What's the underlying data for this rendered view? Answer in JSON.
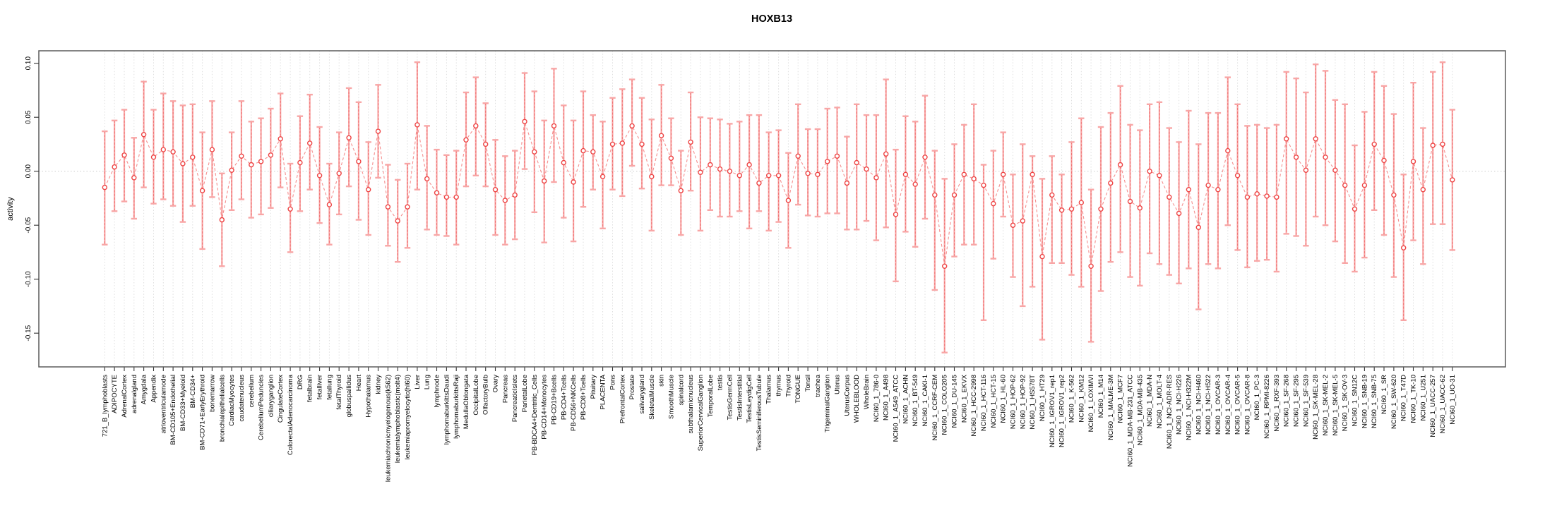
{
  "title": "HOXB13",
  "ylabel": "activity",
  "axis": {
    "ytick_labels": [
      "0.10",
      "0.05",
      "0.00",
      "-0.05",
      "-0.10",
      "-0.15"
    ],
    "yticks": [
      0.1,
      0.05,
      0.0,
      -0.05,
      -0.1,
      -0.15
    ],
    "ylim": [
      -0.177,
      0.112
    ],
    "grid_vertical": true,
    "zero_line": true
  },
  "colors": {
    "point_stroke": "#ee4444",
    "errorbar": "#f8a6a6",
    "errorbar_dash": "#ef7272",
    "series_line": "#f58f8f",
    "grid": "#dedede",
    "axis": "#5c5c5c",
    "text": "#000000",
    "background": "#ffffff"
  },
  "chart_data": {
    "type": "scatter",
    "title": "HOXB13",
    "xlabel": "",
    "ylabel": "activity",
    "legend": "none",
    "error_bars": true,
    "categories": [
      "721_B_lymphoblasts",
      "ADIPOCYTE",
      "AdrenalCortex",
      "adrenalgland",
      "Amygdala",
      "Appendix",
      "atrioventricularnode",
      "BM-CD105+Endothelial",
      "BM-CD33+Myeloid",
      "BM-CD34+",
      "BM-CD71+EarlyErythroid",
      "bonemarrow",
      "bronchialepithelialcells",
      "CardiacMyocytes",
      "caudatenucleus",
      "cerebellum",
      "CerebellumPeduncles",
      "ciliaryganglion",
      "CingulateCortex",
      "ColorectalAdenocarcinoma",
      "DRG",
      "fetalbrain",
      "fetalliver",
      "fetallung",
      "fetalThyroid",
      "globuspallidus",
      "Heart",
      "Hypothalamus",
      "kidney",
      "leukemiachronicmyelogenous(k562)",
      "leukemialymphoblastic(molt4)",
      "leukemiapromyelocytic(hl60)",
      "Liver",
      "Lung",
      "lymphnode",
      "lymphomaburkittsDaudi",
      "lymphomaburkittsRaji",
      "MedullaOblongata",
      "OccipitalLobe",
      "OlfactoryBulb",
      "Ovary",
      "Pancreas",
      "PancreaticIslets",
      "ParietalLobe",
      "PB-BDCA4+Dentritic_Cells",
      "PB-CD14+Monocytes",
      "PB-CD19+Bcells",
      "PB-CD4+Tcells",
      "PB-CD56+NKCells",
      "PB-CD8+Tcells",
      "Pituitary",
      "PLACENTA",
      "Pons",
      "PrefrontalCortex",
      "Prostate",
      "salivarygland",
      "SkeletalMuscle",
      "skin",
      "SmoothMuscle",
      "spinalcord",
      "subthalamicnucleus",
      "SuperiorCervicalGanglion",
      "TemporalLobe",
      "testis",
      "TestisGermCell",
      "TestisInterstitial",
      "TestisLeydigCell",
      "TestisSeminiferousTubule",
      "Thalamus",
      "thymus",
      "Thyroid",
      "TONGUE",
      "Tonsil",
      "trachea",
      "TrigeminalGanglion",
      "Uterus",
      "UterusCorpus",
      "WHOLEBLOOD",
      "WholeBrain",
      "NCI60_1_786-0",
      "NCI60_1_A498",
      "NCI60_1_A549_ATCC",
      "NCI60_1_ACHN",
      "NCI60_1_BT-549",
      "NCI60_1_CAKI-1",
      "NCI60_1_CCRF-CEM",
      "NCI60_1_COLO205",
      "NCI60_1_DU-145",
      "NCI60_1_EKVX",
      "NCI60_1_HCC-2998",
      "NCI60_1_HCT-116",
      "NCI60_1_HCT-15",
      "NCI60_1_HL-60",
      "NCI60_1_HOP-62",
      "NCI60_1_HOP-92",
      "NCI60_1_HS578T",
      "NCI60_1_HT29",
      "NCI60_1_IGROV1_rep1",
      "NCI60_1_IGROV1_rep2",
      "NCI60_1_K-562",
      "NCI60_1_KM12",
      "NCI60_1_LOXIMVI",
      "NCI60_1_M14",
      "NCI60_1_MALME-3M",
      "NCI60_1_MCF7",
      "NCI60_1_MDA-MB-231_ATCC",
      "NCI60_1_MDA-MB-435",
      "NCI60_1_MDA-N",
      "NCI60_1_MOLT-4",
      "NCI60_1_NCI-ADR-RES",
      "NCI60_1_NCI-H226",
      "NCI60_1_NCI-H322M",
      "NCI60_1_NCI-H460",
      "NCI60_1_NCI-H522",
      "NCI60_1_OVCAR-3",
      "NCI60_1_OVCAR-4",
      "NCI60_1_OVCAR-5",
      "NCI60_1_OVCAR-8",
      "NCI60_1_PC-3",
      "NCI60_1_RPMI-8226",
      "NCI60_1_RXF-393",
      "NCI60_1_SF-268",
      "NCI60_1_SF-295",
      "NCI60_1_SF-539",
      "NCI60_1_SK-MEL-28",
      "NCI60_1_SK-MEL-2",
      "NCI60_1_SK-MEL-5",
      "NCI60_1_SK-OV-3",
      "NCI60_1_SN12C",
      "NCI60_1_SNB-19",
      "NCI60_1_SNB-75",
      "NCI60_1_SR",
      "NCI60_1_SW-620",
      "NCI60_1_T47D",
      "NCI60_1_TK-10",
      "NCI60_1_U251",
      "NCI60_1_UACC-257",
      "NCI60_1_UACC-62",
      "NCI60_1_UO-31"
    ],
    "values": [
      -0.015,
      0.004,
      0.015,
      -0.006,
      0.034,
      0.013,
      0.02,
      0.018,
      0.007,
      0.013,
      -0.018,
      0.02,
      -0.045,
      0.001,
      0.014,
      0.006,
      0.009,
      0.015,
      0.03,
      -0.035,
      0.008,
      0.026,
      -0.004,
      -0.031,
      -0.002,
      0.031,
      0.009,
      -0.017,
      0.037,
      -0.033,
      -0.046,
      -0.033,
      0.043,
      -0.007,
      -0.02,
      -0.024,
      -0.024,
      0.029,
      0.042,
      0.025,
      -0.017,
      -0.027,
      -0.022,
      0.046,
      0.018,
      -0.009,
      0.042,
      0.008,
      -0.01,
      0.019,
      0.018,
      -0.005,
      0.025,
      0.026,
      0.042,
      0.025,
      -0.005,
      0.033,
      0.012,
      -0.018,
      0.027,
      -0.001,
      0.006,
      0.002,
      0.0,
      -0.004,
      0.006,
      -0.011,
      -0.004,
      -0.004,
      -0.027,
      0.014,
      -0.002,
      -0.003,
      0.009,
      0.014,
      -0.011,
      0.008,
      0.002,
      -0.006,
      0.016,
      -0.04,
      -0.003,
      -0.012,
      0.013,
      -0.022,
      -0.088,
      -0.022,
      -0.003,
      -0.007,
      -0.013,
      -0.03,
      -0.003,
      -0.05,
      -0.046,
      -0.003,
      -0.079,
      -0.022,
      -0.036,
      -0.035,
      -0.029,
      -0.088,
      -0.035,
      -0.011,
      0.006,
      -0.028,
      -0.034,
      0.0,
      -0.004,
      -0.024,
      -0.039,
      -0.017,
      -0.052,
      -0.013,
      -0.017,
      0.019,
      -0.004,
      -0.024,
      -0.021,
      -0.023,
      -0.024,
      0.03,
      0.013,
      0.001,
      0.03,
      0.013,
      0.001,
      -0.013,
      -0.035,
      -0.013,
      0.025,
      0.01,
      -0.022,
      -0.071,
      0.009,
      -0.017,
      0.024,
      0.025,
      -0.008
    ],
    "lower": [
      -0.068,
      -0.037,
      -0.028,
      -0.044,
      -0.015,
      -0.03,
      -0.026,
      -0.032,
      -0.047,
      -0.032,
      -0.072,
      -0.024,
      -0.088,
      -0.036,
      -0.026,
      -0.043,
      -0.04,
      -0.034,
      -0.015,
      -0.075,
      -0.037,
      -0.017,
      -0.048,
      -0.068,
      -0.04,
      -0.014,
      -0.045,
      -0.059,
      -0.006,
      -0.069,
      -0.084,
      -0.071,
      -0.017,
      -0.054,
      -0.059,
      -0.06,
      -0.068,
      -0.014,
      -0.004,
      -0.014,
      -0.059,
      -0.068,
      -0.063,
      0.002,
      -0.038,
      -0.066,
      -0.01,
      -0.043,
      -0.065,
      -0.033,
      -0.017,
      -0.053,
      -0.017,
      -0.023,
      0.005,
      -0.016,
      -0.055,
      -0.013,
      -0.013,
      -0.059,
      -0.018,
      -0.055,
      -0.036,
      -0.042,
      -0.042,
      -0.037,
      -0.053,
      -0.037,
      -0.055,
      -0.047,
      -0.071,
      -0.031,
      -0.041,
      -0.042,
      -0.039,
      -0.039,
      -0.054,
      -0.054,
      -0.046,
      -0.064,
      -0.052,
      -0.102,
      -0.056,
      -0.07,
      -0.044,
      -0.11,
      -0.168,
      -0.079,
      -0.068,
      -0.068,
      -0.138,
      -0.081,
      -0.042,
      -0.098,
      -0.125,
      -0.107,
      -0.156,
      -0.085,
      -0.085,
      -0.096,
      -0.107,
      -0.158,
      -0.111,
      -0.084,
      -0.075,
      -0.098,
      -0.106,
      -0.076,
      -0.086,
      -0.096,
      -0.104,
      -0.09,
      -0.128,
      -0.086,
      -0.09,
      -0.05,
      -0.073,
      -0.089,
      -0.083,
      -0.082,
      -0.093,
      -0.058,
      -0.06,
      -0.069,
      -0.042,
      -0.05,
      -0.065,
      -0.085,
      -0.093,
      -0.08,
      -0.036,
      -0.059,
      -0.098,
      -0.138,
      -0.064,
      -0.086,
      -0.049,
      -0.049,
      -0.073
    ],
    "upper": [
      0.037,
      0.047,
      0.057,
      0.031,
      0.083,
      0.057,
      0.072,
      0.065,
      0.061,
      0.062,
      0.036,
      0.065,
      -0.002,
      0.036,
      0.065,
      0.046,
      0.049,
      0.058,
      0.072,
      0.007,
      0.051,
      0.071,
      0.041,
      0.007,
      0.036,
      0.077,
      0.064,
      0.027,
      0.08,
      0.006,
      -0.008,
      0.007,
      0.101,
      0.042,
      0.02,
      0.015,
      0.019,
      0.073,
      0.087,
      0.063,
      0.029,
      0.014,
      0.019,
      0.091,
      0.074,
      0.047,
      0.095,
      0.061,
      0.047,
      0.074,
      0.052,
      0.046,
      0.068,
      0.076,
      0.085,
      0.068,
      0.048,
      0.08,
      0.049,
      0.019,
      0.073,
      0.05,
      0.049,
      0.048,
      0.044,
      0.046,
      0.052,
      0.052,
      0.036,
      0.038,
      0.017,
      0.062,
      0.039,
      0.039,
      0.058,
      0.059,
      0.032,
      0.062,
      0.052,
      0.052,
      0.085,
      0.02,
      0.051,
      0.046,
      0.07,
      0.019,
      -0.007,
      0.025,
      0.043,
      0.062,
      0.006,
      0.019,
      0.036,
      -0.003,
      0.025,
      0.014,
      -0.007,
      0.014,
      -0.003,
      0.027,
      0.049,
      -0.017,
      0.041,
      0.054,
      0.079,
      0.043,
      0.038,
      0.062,
      0.064,
      0.04,
      0.027,
      0.056,
      0.025,
      0.054,
      0.054,
      0.087,
      0.062,
      0.042,
      0.043,
      0.04,
      0.043,
      0.092,
      0.086,
      0.073,
      0.099,
      0.093,
      0.066,
      0.062,
      0.024,
      0.055,
      0.092,
      0.079,
      0.053,
      -0.003,
      0.082,
      0.04,
      0.092,
      0.101,
      0.057
    ]
  }
}
